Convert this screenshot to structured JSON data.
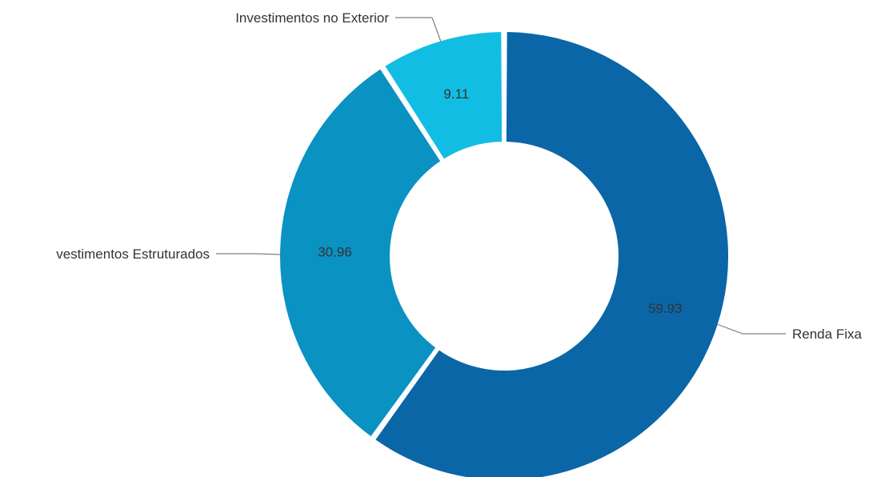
{
  "chart_data": {
    "type": "pie",
    "variant": "donut",
    "legend": "none",
    "labels_position": "outside",
    "data_labels_position": "inside",
    "slices": [
      {
        "label": "Renda Fixa",
        "display_label": "Renda Fixa",
        "value": 59.93,
        "value_label": "59.93",
        "color": "#0a66a6"
      },
      {
        "label": "Investimentos Estruturados",
        "display_label": "vestimentos Estruturados",
        "value": 30.96,
        "value_label": "30.96",
        "color": "#0a92c2"
      },
      {
        "label": "Investimentos no Exterior",
        "display_label": "Investimentos no Exterior",
        "value": 9.11,
        "value_label": "9.11",
        "color": "#12bde3"
      }
    ]
  }
}
